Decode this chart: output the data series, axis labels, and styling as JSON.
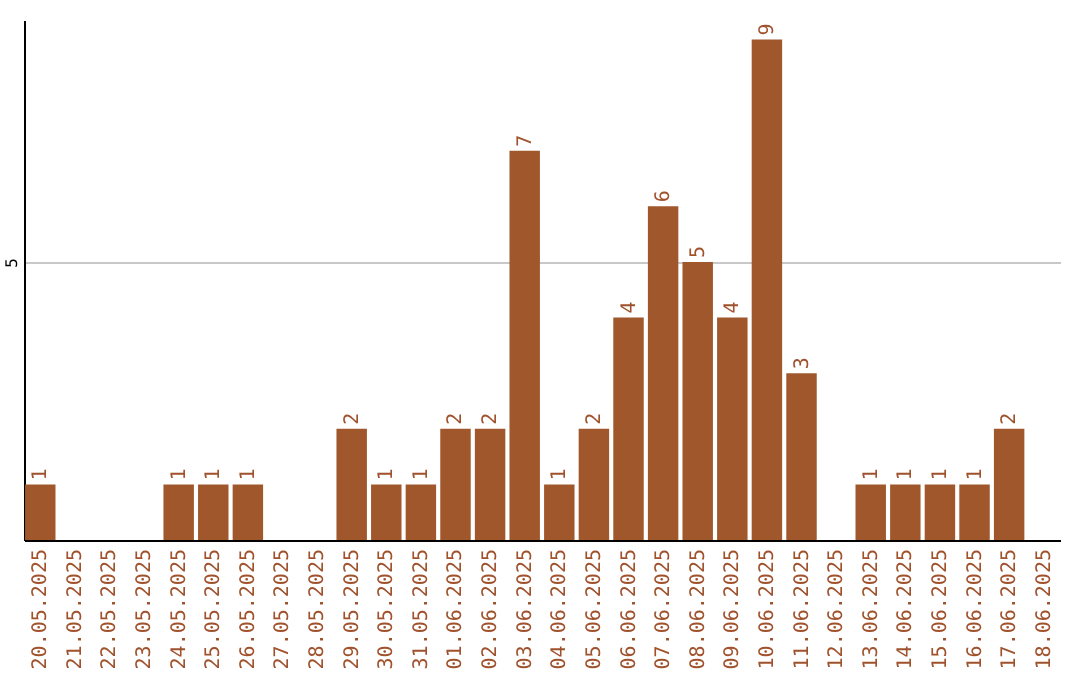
{
  "chart_data": {
    "type": "bar",
    "categories": [
      "20.05.2025",
      "21.05.2025",
      "22.05.2025",
      "23.05.2025",
      "24.05.2025",
      "25.05.2025",
      "26.05.2025",
      "27.05.2025",
      "28.05.2025",
      "29.05.2025",
      "30.05.2025",
      "31.05.2025",
      "01.06.2025",
      "02.06.2025",
      "03.06.2025",
      "04.06.2025",
      "05.06.2025",
      "06.06.2025",
      "07.06.2025",
      "08.06.2025",
      "09.06.2025",
      "10.06.2025",
      "11.06.2025",
      "12.06.2025",
      "13.06.2025",
      "14.06.2025",
      "15.06.2025",
      "16.06.2025",
      "17.06.2025",
      "18.06.2025"
    ],
    "values": [
      1,
      0,
      0,
      0,
      1,
      1,
      1,
      0,
      0,
      2,
      1,
      1,
      2,
      2,
      7,
      1,
      2,
      4,
      6,
      5,
      4,
      9,
      3,
      0,
      1,
      1,
      1,
      1,
      2,
      0
    ],
    "value_labels": [
      "1",
      null,
      null,
      null,
      "1",
      "1",
      "1",
      null,
      null,
      "2",
      "1",
      "1",
      "2",
      "2",
      "7",
      "1",
      "2",
      "4",
      "6",
      "5",
      "4",
      "9",
      "3",
      null,
      "1",
      "1",
      "1",
      "1",
      "2",
      null
    ],
    "color": "#a0572b",
    "ylim": [
      0,
      9.35
    ],
    "yticks": [
      5
    ],
    "grid": "y"
  }
}
